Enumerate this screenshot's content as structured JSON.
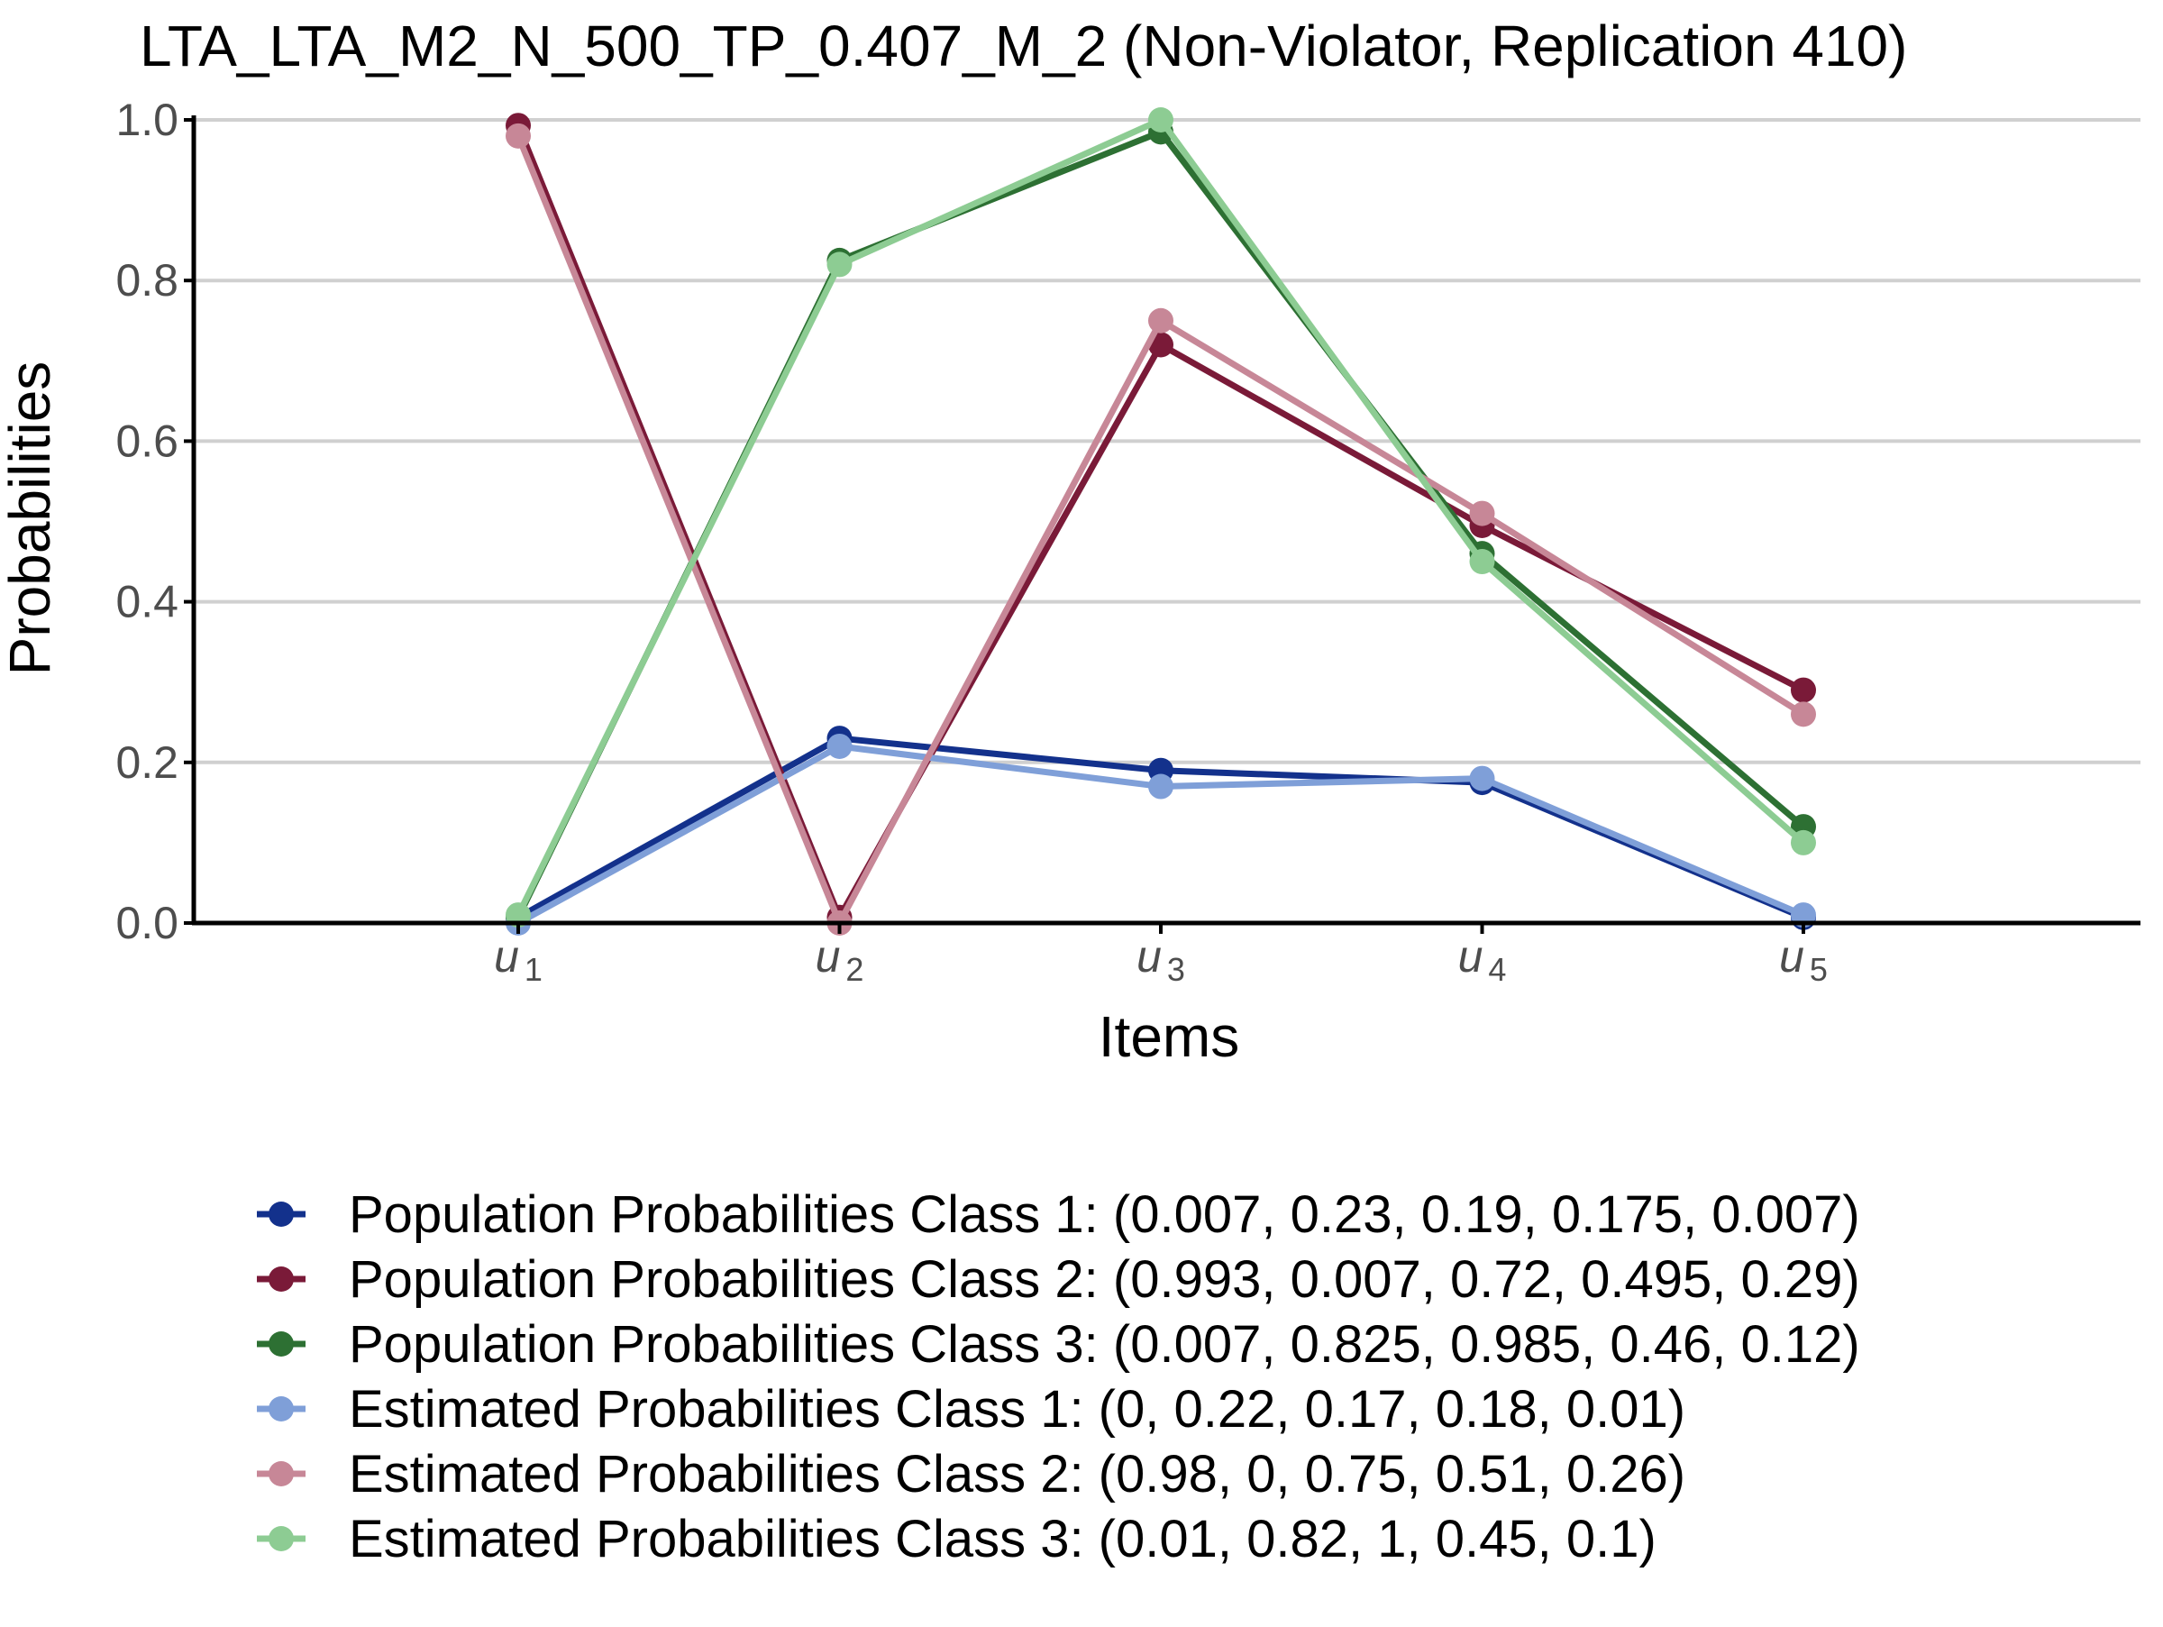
{
  "chart_data": {
    "type": "line",
    "title": "LTA_LTA_M2_N_500_TP_0.407_M_2 (Non-Violator, Replication 410)",
    "xlabel": "Items",
    "ylabel": "Probabilities",
    "ylim": [
      0,
      1
    ],
    "yticks": [
      "0.0",
      "0.2",
      "0.4",
      "0.6",
      "0.8",
      "1.0"
    ],
    "categories": [
      {
        "base": "u",
        "sub": "1"
      },
      {
        "base": "u",
        "sub": "2"
      },
      {
        "base": "u",
        "sub": "3"
      },
      {
        "base": "u",
        "sub": "4"
      },
      {
        "base": "u",
        "sub": "5"
      }
    ],
    "grid": "horizontal major",
    "legend_position": "bottom",
    "series": [
      {
        "name": "Population Probabilities Class 1: (0.007, 0.23, 0.19, 0.175, 0.007)",
        "color": "#13318c",
        "values": [
          0.007,
          0.23,
          0.19,
          0.175,
          0.007
        ]
      },
      {
        "name": "Population Probabilities Class 2: (0.993, 0.007, 0.72, 0.495, 0.29)",
        "color": "#7a1a38",
        "values": [
          0.993,
          0.007,
          0.72,
          0.495,
          0.29
        ]
      },
      {
        "name": "Population Probabilities Class 3: (0.007, 0.825, 0.985, 0.46, 0.12)",
        "color": "#2d7033",
        "values": [
          0.007,
          0.825,
          0.985,
          0.46,
          0.12
        ]
      },
      {
        "name": "Estimated Probabilities Class 1: (0, 0.22, 0.17, 0.18, 0.01)",
        "color": "#7f9fd8",
        "values": [
          0,
          0.22,
          0.17,
          0.18,
          0.01
        ]
      },
      {
        "name": "Estimated Probabilities Class 2: (0.98, 0, 0.75, 0.51, 0.26)",
        "color": "#c78797",
        "values": [
          0.98,
          0,
          0.75,
          0.51,
          0.26
        ]
      },
      {
        "name": "Estimated Probabilities Class 3: (0.01, 0.82, 1, 0.45, 0.1)",
        "color": "#8dcc93",
        "values": [
          0.01,
          0.82,
          1,
          0.45,
          0.1
        ]
      }
    ]
  }
}
